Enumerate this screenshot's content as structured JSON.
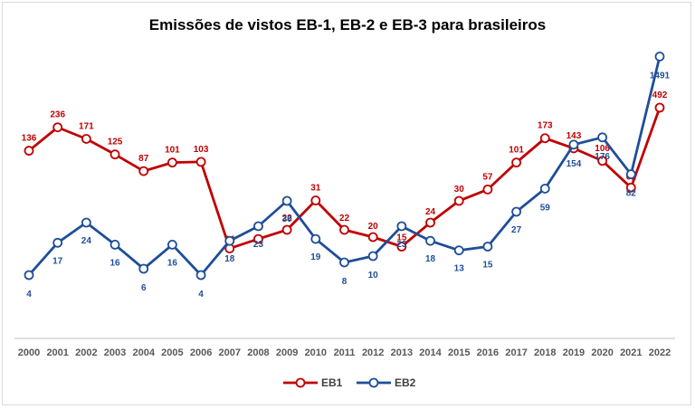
{
  "chart_data": {
    "type": "line",
    "title": "Emissões de vistos EB-1, EB-2 e EB-3 para brasileiros",
    "categories": [
      "2000",
      "2001",
      "2002",
      "2003",
      "2004",
      "2005",
      "2006",
      "2007",
      "2008",
      "2009",
      "2010",
      "2011",
      "2012",
      "2013",
      "2014",
      "2015",
      "2016",
      "2017",
      "2018",
      "2019",
      "2020",
      "2021",
      "2022"
    ],
    "series": [
      {
        "name": "EB1",
        "color": "#c00000",
        "values": [
          136,
          236,
          171,
          125,
          87,
          101,
          103,
          14,
          19,
          22,
          31,
          22,
          20,
          15,
          24,
          30,
          57,
          101,
          173,
          143,
          106,
          61,
          492
        ],
        "labels": [
          "136",
          "236",
          "171",
          "125",
          "87",
          "101",
          "103",
          "14",
          "19",
          "22",
          "31",
          "22",
          "20",
          "15",
          "24",
          "30",
          "57",
          "101",
          "173",
          "143",
          "106",
          "61",
          "492"
        ]
      },
      {
        "name": "EB2",
        "color": "#1f4e99",
        "values": [
          4,
          17,
          24,
          16,
          6,
          16,
          4,
          18,
          23,
          30,
          19,
          8,
          10,
          23,
          18,
          13,
          15,
          27,
          59,
          154,
          176,
          82,
          1491
        ],
        "labels": [
          "4",
          "17",
          "24",
          "16",
          "6",
          "16",
          "4",
          "18",
          "23",
          "30",
          "19",
          "8",
          "10",
          "23",
          "18",
          "13",
          "15",
          "27",
          "59",
          "154",
          "176",
          "82",
          "1491"
        ]
      }
    ],
    "xlabel": "",
    "ylabel": "",
    "grid": false,
    "legend": "bottom"
  }
}
